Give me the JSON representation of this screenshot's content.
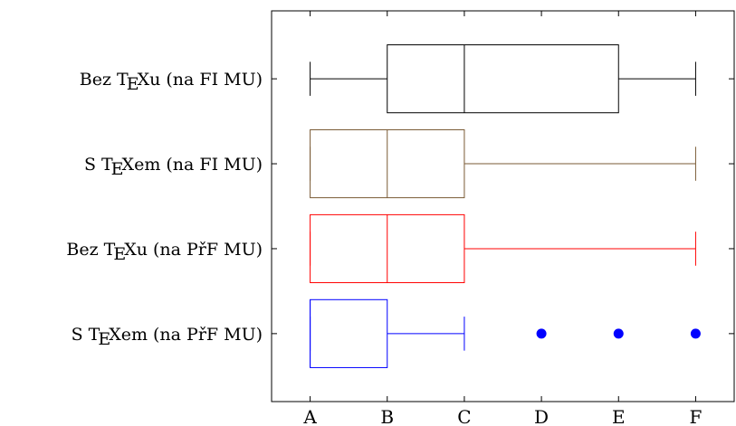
{
  "chart_data": {
    "type": "boxplot",
    "orientation": "horizontal",
    "x_categories": [
      "A",
      "B",
      "C",
      "D",
      "E",
      "F"
    ],
    "xlim": [
      -0.5,
      5.5
    ],
    "grid": false,
    "legend": "none",
    "series": [
      {
        "label": "Bez T_EXu (na FI MU)",
        "label_parts": [
          "Bez T",
          "E",
          "Xu (na FI MU)"
        ],
        "color": "#000000",
        "whisker_low": 0,
        "q1": 1,
        "median": 2,
        "q3": 4,
        "whisker_high": 5,
        "outliers": []
      },
      {
        "label": "S T_EXem (na FI MU)",
        "label_parts": [
          "S T",
          "E",
          "Xem (na FI MU)"
        ],
        "color": "#7a5a35",
        "whisker_low": 0,
        "q1": 0,
        "median": 1,
        "q3": 2,
        "whisker_high": 5,
        "outliers": []
      },
      {
        "label": "Bez T_EXu (na PřF MU)",
        "label_parts": [
          "Bez T",
          "E",
          "Xu (na PřF MU)"
        ],
        "color": "#ff0000",
        "whisker_low": 0,
        "q1": 0,
        "median": 1,
        "q3": 2,
        "whisker_high": 5,
        "outliers": []
      },
      {
        "label": "S T_EXem (na PřF MU)",
        "label_parts": [
          "S T",
          "E",
          "Xem (na PřF MU)"
        ],
        "color": "#0000ff",
        "whisker_low": 0,
        "q1": 0,
        "median": 0,
        "q3": 1,
        "whisker_high": 2,
        "outliers": [
          3,
          4,
          5
        ]
      }
    ]
  }
}
